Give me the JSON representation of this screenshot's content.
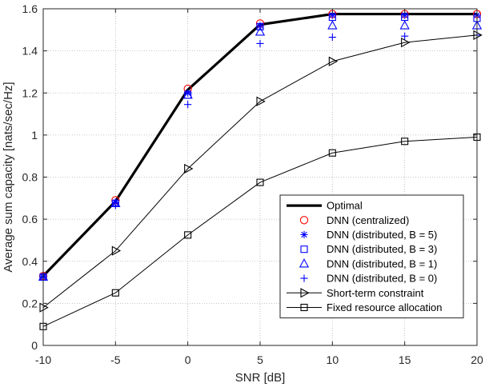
{
  "chart_data": {
    "type": "line",
    "xlabel": "SNR [dB]",
    "ylabel": "Average sum capacity [nats/sec/Hz]",
    "x": [
      -10,
      -5,
      0,
      5,
      10,
      15,
      20
    ],
    "xlim": [
      -10,
      20
    ],
    "ylim": [
      0,
      1.6
    ],
    "xticks": [
      -10,
      -5,
      0,
      5,
      10,
      15,
      20
    ],
    "xtick_labels": [
      "-10",
      "-5",
      "0",
      "5",
      "10",
      "15",
      "20"
    ],
    "yticks": [
      0,
      0.2,
      0.4,
      0.6,
      0.8,
      1,
      1.2,
      1.4,
      1.6
    ],
    "ytick_labels": [
      "0",
      "0.2",
      "0.4",
      "0.6",
      "0.8",
      "1",
      "1.2",
      "1.4",
      "1.6"
    ],
    "grid": true,
    "legend_position": "bottom-right",
    "series": [
      {
        "name": "Optimal",
        "values": [
          0.33,
          0.685,
          1.215,
          1.525,
          1.575,
          1.575,
          1.575
        ],
        "color": "#000000",
        "line": true,
        "marker": "none",
        "line_width": "thick"
      },
      {
        "name": "DNN (centralized)",
        "values": [
          0.33,
          0.69,
          1.22,
          1.53,
          1.575,
          1.575,
          1.575
        ],
        "color": "#ff0000",
        "line": false,
        "marker": "circle"
      },
      {
        "name": "DNN (distributed, B = 5)",
        "values": [
          0.325,
          0.68,
          1.2,
          1.52,
          1.57,
          1.57,
          1.57
        ],
        "color": "#0000ff",
        "line": false,
        "marker": "asterisk"
      },
      {
        "name": "DNN (distributed, B = 3)",
        "values": [
          0.325,
          0.675,
          1.19,
          1.515,
          1.56,
          1.56,
          1.555
        ],
        "color": "#0000ff",
        "line": false,
        "marker": "square"
      },
      {
        "name": "DNN (distributed, B = 1)",
        "values": [
          0.325,
          0.675,
          1.19,
          1.49,
          1.52,
          1.52,
          1.52
        ],
        "color": "#0000ff",
        "line": false,
        "marker": "triangle"
      },
      {
        "name": "DNN (distributed, B = 0)",
        "values": [
          0.32,
          0.665,
          1.145,
          1.435,
          1.465,
          1.47,
          1.475
        ],
        "color": "#0000ff",
        "line": false,
        "marker": "plus"
      },
      {
        "name": "Short-term constraint",
        "values": [
          0.18,
          0.45,
          0.84,
          1.16,
          1.35,
          1.44,
          1.475
        ],
        "color": "#000000",
        "line": true,
        "marker": "triangle-right",
        "line_width": "thin"
      },
      {
        "name": "Fixed resource allocation",
        "values": [
          0.09,
          0.25,
          0.525,
          0.775,
          0.915,
          0.97,
          0.99
        ],
        "color": "#000000",
        "line": true,
        "marker": "square",
        "line_width": "thin"
      }
    ]
  }
}
